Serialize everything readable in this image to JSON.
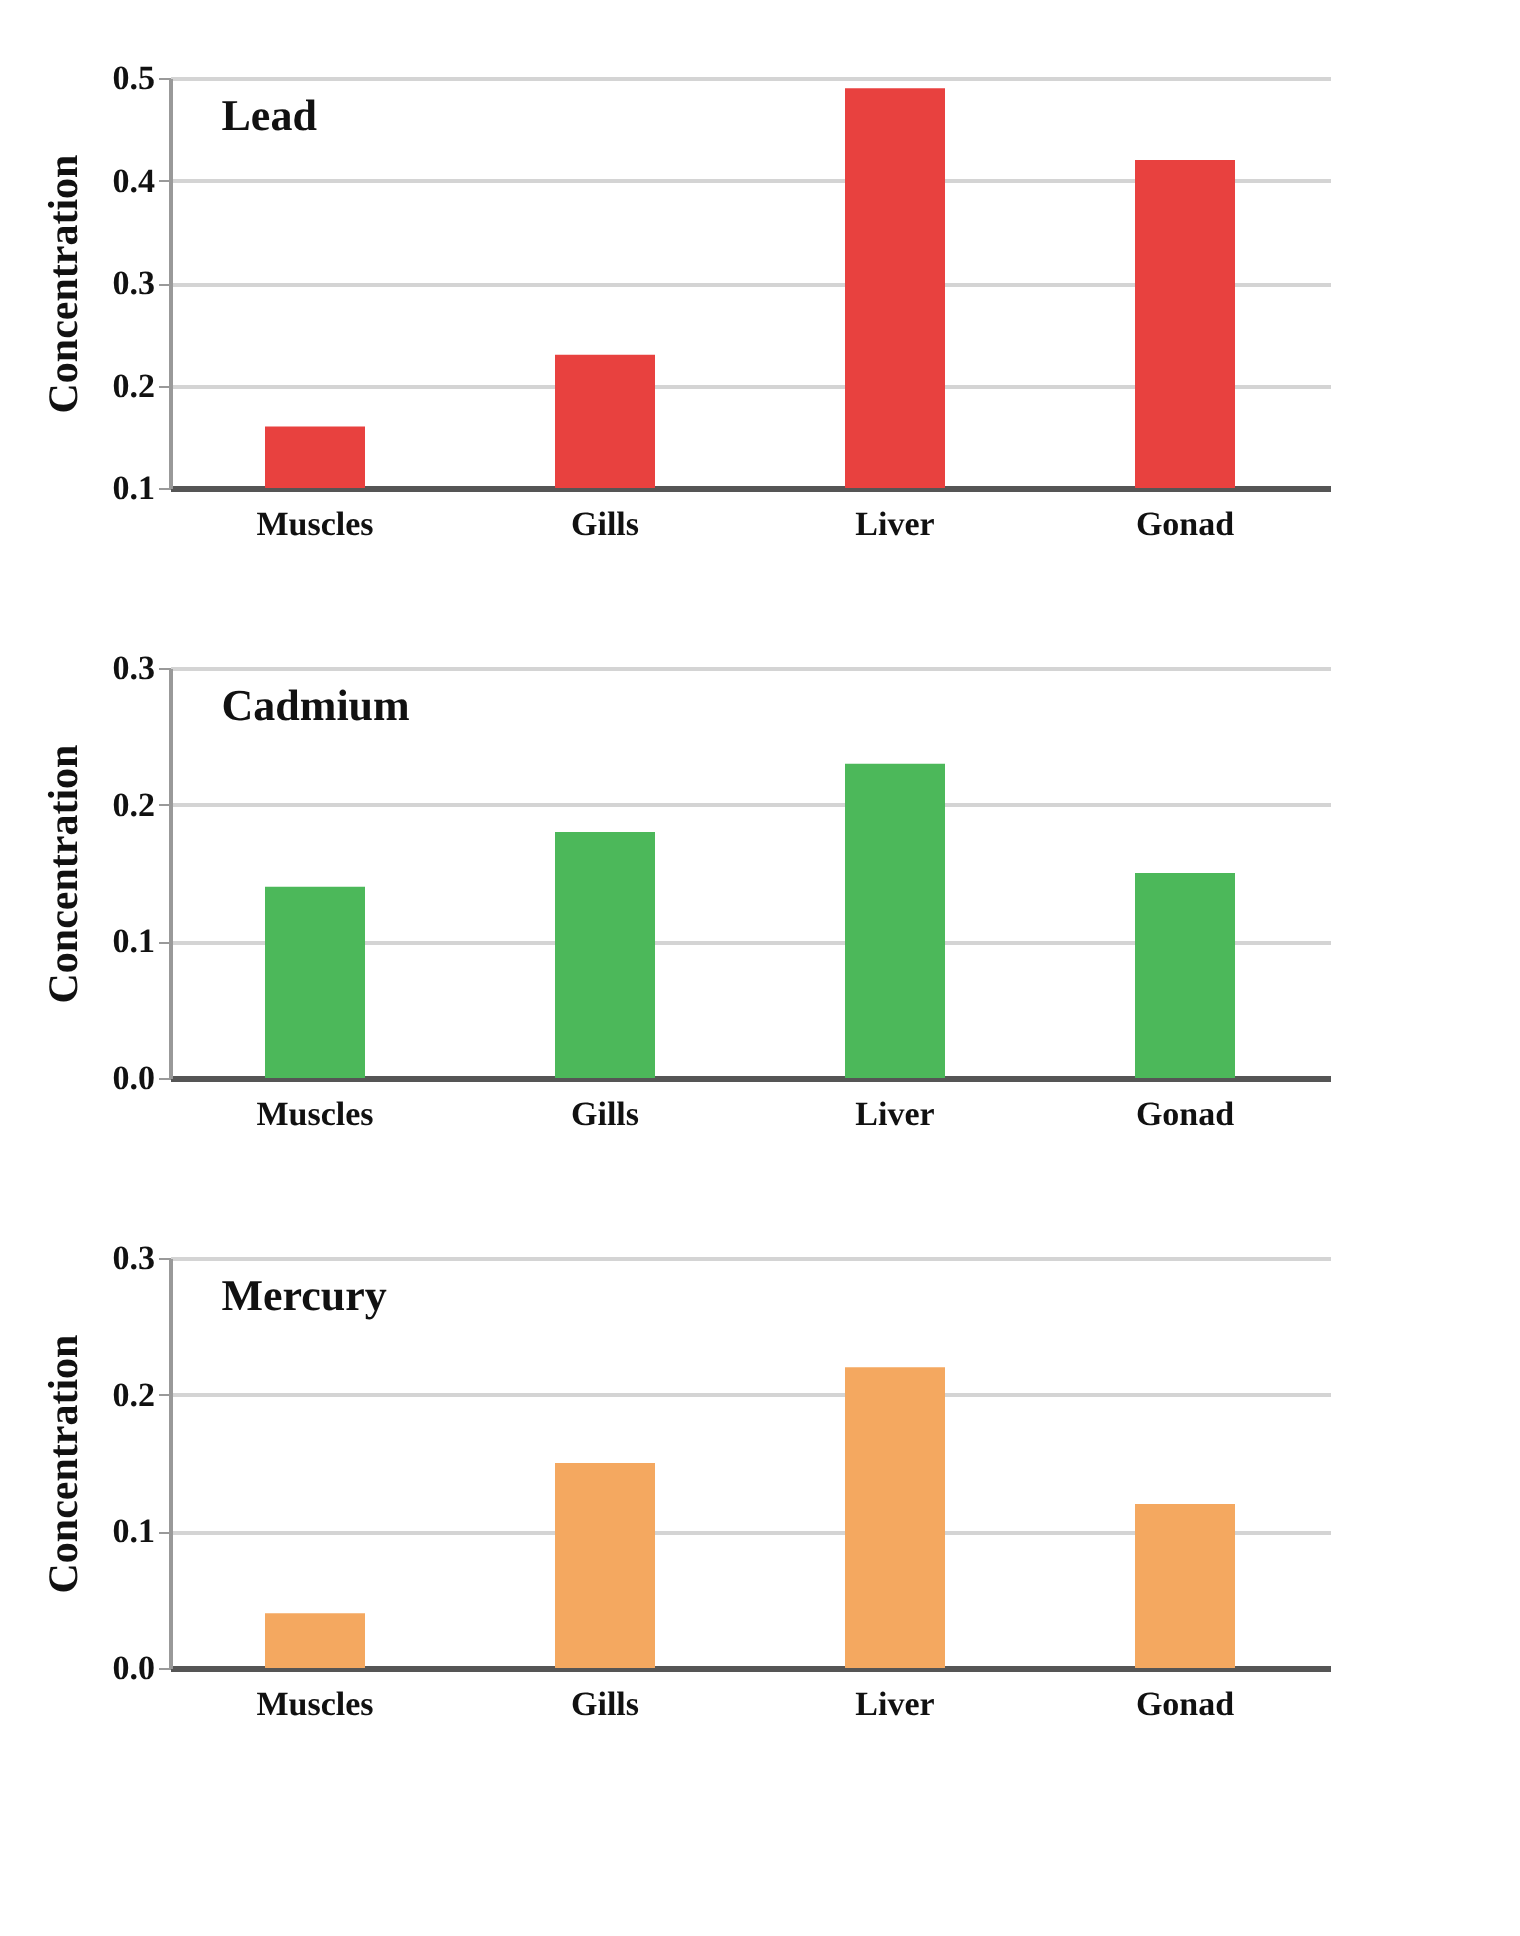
{
  "chart_data": [
    {
      "type": "bar",
      "title": "Lead",
      "ylabel": "Concentration",
      "categories": [
        "Muscles",
        "Gills",
        "Liver",
        "Gonad"
      ],
      "values": [
        0.16,
        0.23,
        0.49,
        0.42
      ],
      "color": "#e8413f",
      "ylim": [
        0.1,
        0.5
      ],
      "yticks": [
        0.1,
        0.2,
        0.3,
        0.4,
        0.5
      ],
      "grid": "y"
    },
    {
      "type": "bar",
      "title": "Cadmium",
      "ylabel": "Concentration",
      "categories": [
        "Muscles",
        "Gills",
        "Liver",
        "Gonad"
      ],
      "values": [
        0.14,
        0.18,
        0.23,
        0.15
      ],
      "color": "#4cb85a",
      "ylim": [
        0.0,
        0.3
      ],
      "yticks": [
        {
          "value": 0,
          "label": "0.0"
        },
        0.1,
        0.2,
        0.3
      ],
      "grid": "y"
    },
    {
      "type": "bar",
      "title": "Mercury",
      "ylabel": "Concentration",
      "categories": [
        "Muscles",
        "Gills",
        "Liver",
        "Gonad"
      ],
      "values": [
        0.04,
        0.15,
        0.22,
        0.12
      ],
      "color": "#f4a860",
      "ylim": [
        0.0,
        0.3
      ],
      "yticks": [
        {
          "value": 0,
          "label": "0.0"
        },
        0.1,
        0.2,
        0.3
      ],
      "grid": "y"
    }
  ]
}
